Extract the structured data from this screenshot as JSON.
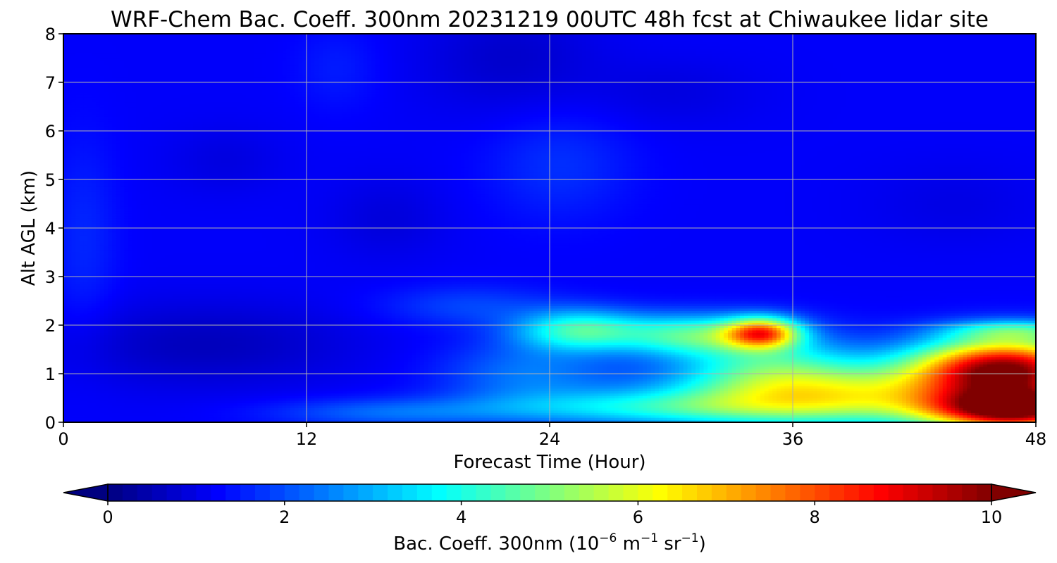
{
  "chart_data": {
    "type": "heatmap",
    "title": "WRF-Chem Bac. Coeff. 300nm  20231219 00UTC 48h fcst at Chiwaukee lidar site",
    "xlabel": "Forecast Time (Hour)",
    "ylabel": "Alt AGL (km)",
    "xlim": [
      0,
      48
    ],
    "ylim": [
      0,
      8
    ],
    "x_ticks": [
      "0",
      "12",
      "24",
      "36",
      "48"
    ],
    "y_ticks": [
      "0",
      "1",
      "2",
      "3",
      "4",
      "5",
      "6",
      "7",
      "8"
    ],
    "grid": true,
    "colormap": "jet",
    "colorbar": {
      "label_main": "Bac. Coeff. 300nm  (10",
      "label_exp1": "−6",
      "label_mid": " m",
      "label_exp2": "−1",
      "label_mid2": " sr",
      "label_exp3": "−1",
      "label_end": ")",
      "range": [
        0,
        10
      ],
      "ticks": [
        "0",
        "2",
        "4",
        "6",
        "8",
        "10"
      ],
      "extend": "both"
    },
    "background_value": 1.2,
    "features": [
      {
        "x": 25.5,
        "y": 1.9,
        "sx": 2.2,
        "sy": 0.3,
        "amp": 3.0
      },
      {
        "x": 23,
        "y": 1.0,
        "sx": 3.0,
        "sy": 0.5,
        "amp": 1.2
      },
      {
        "x": 31,
        "y": 1.8,
        "sx": 2.5,
        "sy": 0.3,
        "amp": 3.0
      },
      {
        "x": 34.5,
        "y": 1.85,
        "sx": 1.3,
        "sy": 0.22,
        "amp": 5.5
      },
      {
        "x": 35,
        "y": 1.2,
        "sx": 3.0,
        "sy": 0.5,
        "amp": 2.2
      },
      {
        "x": 38,
        "y": 0.55,
        "sx": 5.5,
        "sy": 0.45,
        "amp": 4.2
      },
      {
        "x": 29,
        "y": 0.3,
        "sx": 6.0,
        "sy": 0.25,
        "amp": 2.0
      },
      {
        "x": 46.5,
        "y": 1.1,
        "sx": 3.2,
        "sy": 0.45,
        "amp": 8.5
      },
      {
        "x": 47,
        "y": 0.25,
        "sx": 3.0,
        "sy": 0.3,
        "amp": 8.0
      },
      {
        "x": 47,
        "y": 1.9,
        "sx": 2.5,
        "sy": 0.15,
        "amp": 2.0
      },
      {
        "x": 20,
        "y": 2.4,
        "sx": 3.0,
        "sy": 0.3,
        "amp": 0.7
      },
      {
        "x": 16,
        "y": 0.2,
        "sx": 4.0,
        "sy": 0.2,
        "amp": 1.0
      },
      {
        "x": 24.5,
        "y": 5.3,
        "sx": 2.5,
        "sy": 0.8,
        "amp": 0.5
      },
      {
        "x": 1.0,
        "y": 3.8,
        "sx": 1.2,
        "sy": 1.5,
        "amp": 0.4
      },
      {
        "x": 13.5,
        "y": 7.3,
        "sx": 1.5,
        "sy": 0.6,
        "amp": 0.3
      },
      {
        "x": 7,
        "y": 1.6,
        "sx": 5.0,
        "sy": 0.6,
        "amp": -0.6
      },
      {
        "x": 22,
        "y": 7.5,
        "sx": 3.0,
        "sy": 0.8,
        "amp": -0.45
      },
      {
        "x": 8,
        "y": 5.4,
        "sx": 2.0,
        "sy": 0.5,
        "amp": -0.25
      },
      {
        "x": 16,
        "y": 4.2,
        "sx": 2.0,
        "sy": 0.6,
        "amp": -0.3
      },
      {
        "x": 30,
        "y": 6.8,
        "sx": 3.0,
        "sy": 0.5,
        "amp": -0.25
      },
      {
        "x": 44,
        "y": 4.5,
        "sx": 3.0,
        "sy": 0.6,
        "amp": -0.2
      }
    ]
  }
}
